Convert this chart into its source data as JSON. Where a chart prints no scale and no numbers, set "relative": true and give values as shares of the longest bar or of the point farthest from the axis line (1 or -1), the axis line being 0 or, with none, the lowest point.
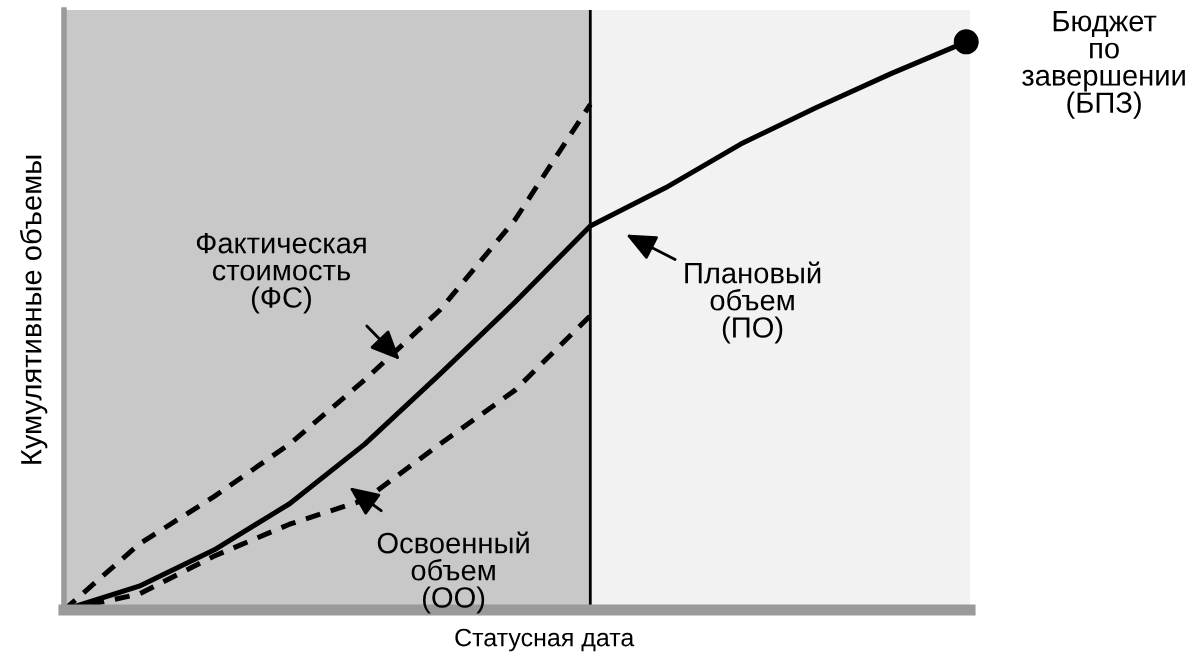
{
  "chart_data": {
    "type": "line",
    "relative": true,
    "xlabel": "Статусная дата",
    "ylabel": "Кумулятивные объемы",
    "categories": [
      null,
      null,
      null,
      null,
      null,
      null,
      null,
      null,
      null,
      null,
      null,
      null,
      null
    ],
    "series": [
      {
        "color": "#000000",
        "line_style": "solid",
        "values": [
          0,
          0.042,
          0.106,
          0.187,
          0.292,
          0.415,
          0.542,
          0.676,
          0.743,
          0.82,
          0.884,
          0.944,
          1.0
        ]
      },
      {
        "color": "#000000",
        "line_style": "dashed",
        "values": [
          0,
          0.116,
          0.2,
          0.292,
          0.405,
          0.528,
          0.687,
          0.89,
          null,
          null,
          null,
          null,
          null
        ]
      },
      {
        "color": "#000000",
        "line_style": "dashed",
        "values": [
          0,
          0.028,
          0.095,
          0.151,
          0.194,
          0.292,
          0.387,
          0.518,
          null,
          null,
          null,
          null,
          null
        ]
      }
    ],
    "annotations": [
      "Фактическая\nстоимость\n(ФС)",
      "Плановый\nобъем\n(ПО)",
      "Освоенный\nобъем\n(ОО)",
      "Бюджет\nпо\nзавершении\n(БПЗ)"
    ],
    "grid": false
  }
}
